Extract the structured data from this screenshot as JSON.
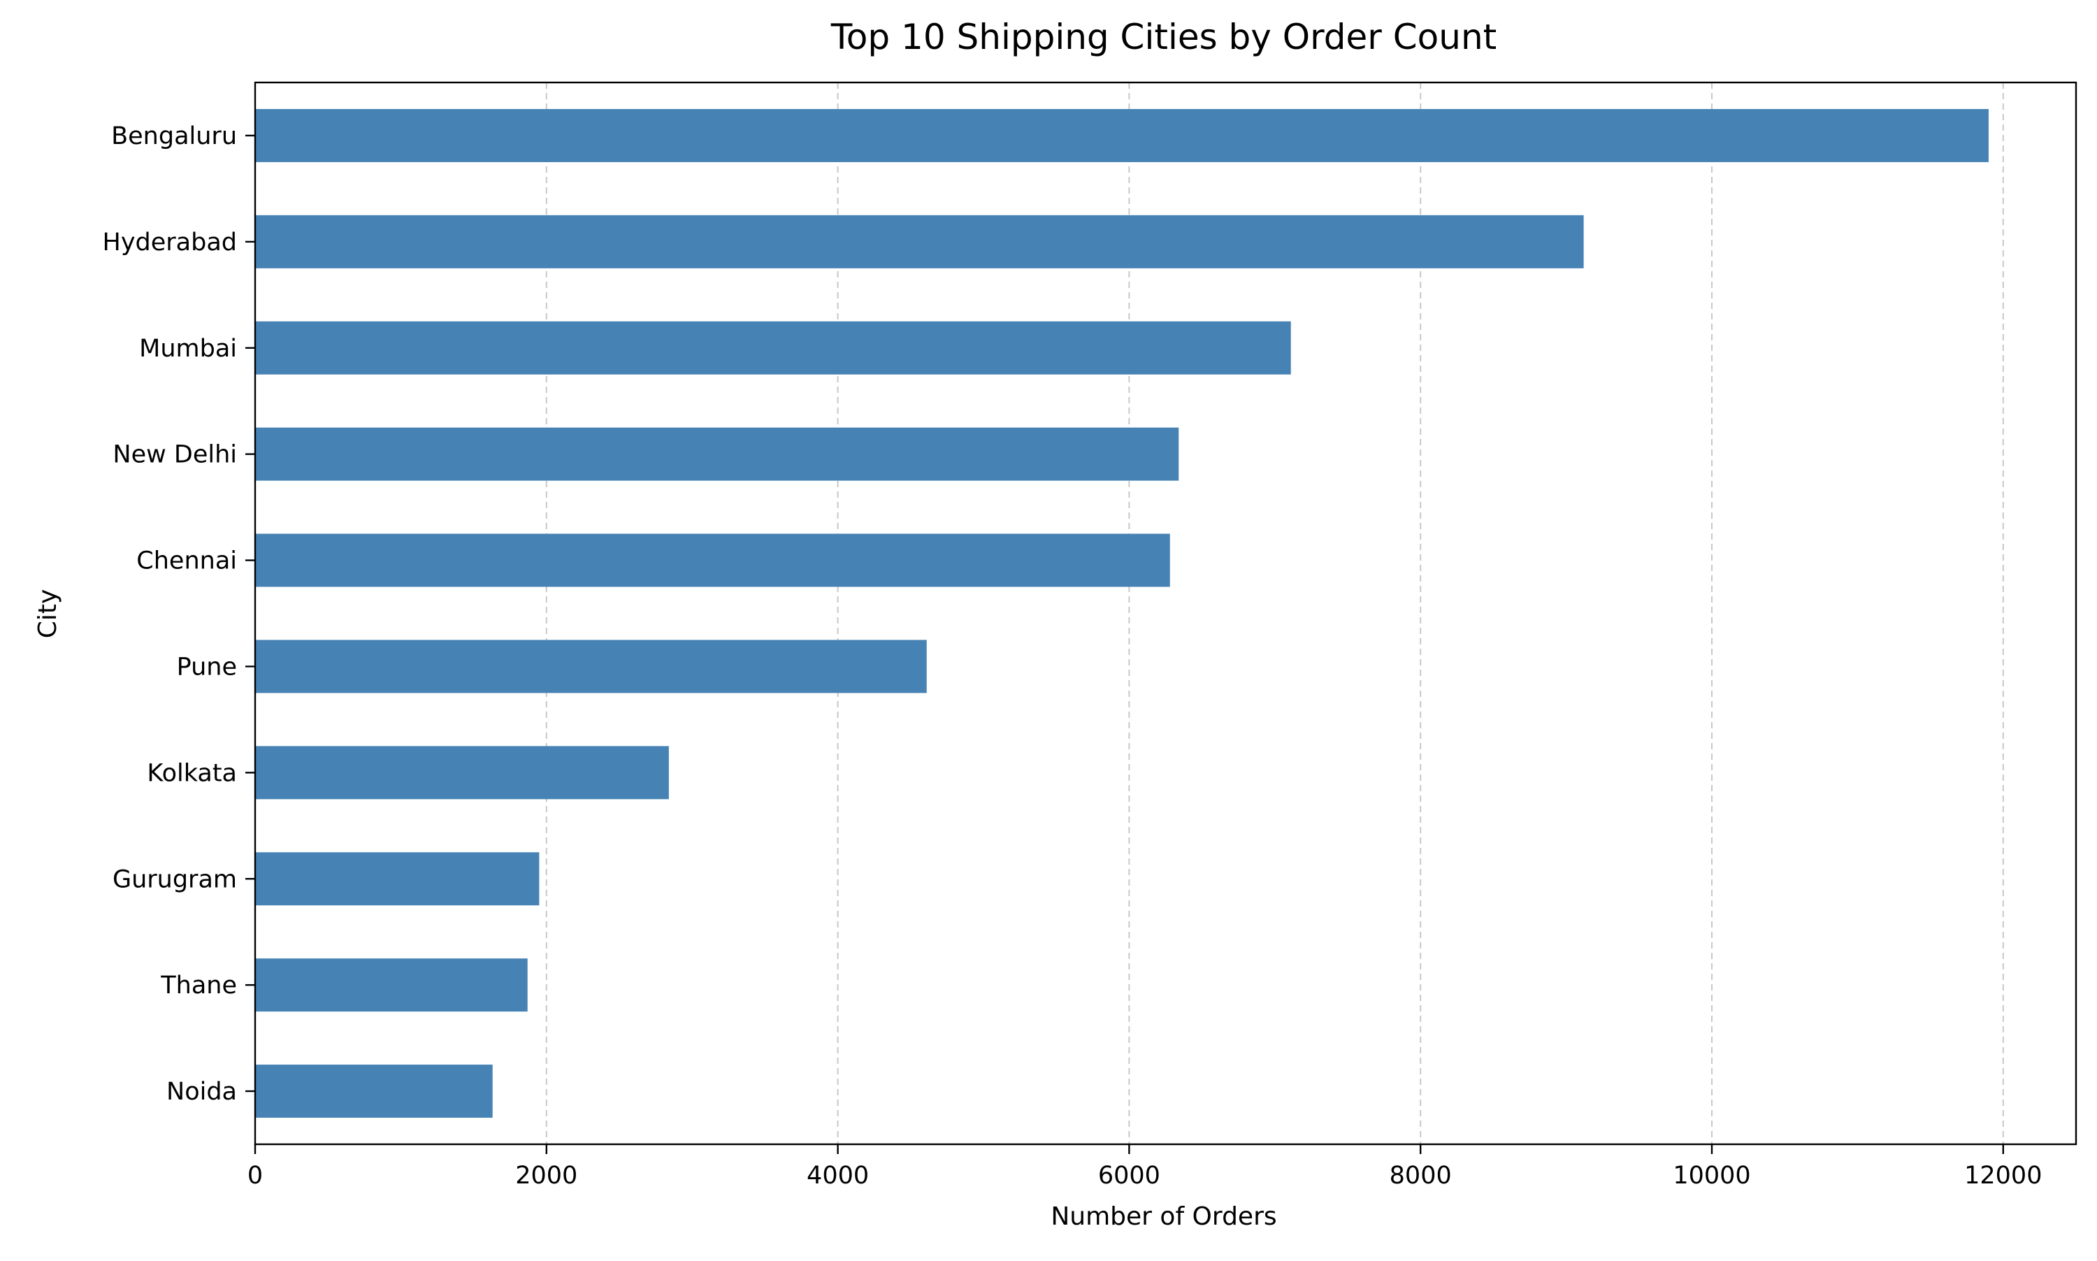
{
  "chart_data": {
    "type": "bar",
    "orientation": "horizontal",
    "title": "Top 10 Shipping Cities by Order Count",
    "xlabel": "Number of Orders",
    "ylabel": "City",
    "categories": [
      "Bengaluru",
      "Hyderabad",
      "Mumbai",
      "New Delhi",
      "Chennai",
      "Pune",
      "Kolkata",
      "Gurugram",
      "Thane",
      "Noida"
    ],
    "values": [
      11900,
      9120,
      7110,
      6340,
      6280,
      4610,
      2840,
      1950,
      1870,
      1630
    ],
    "xlim": [
      0,
      12500
    ],
    "xticks": [
      0,
      2000,
      4000,
      6000,
      8000,
      10000,
      12000
    ],
    "xtick_labels": [
      "0",
      "2000",
      "4000",
      "6000",
      "8000",
      "10000",
      "12000"
    ],
    "grid": "x-dashed",
    "legend": "none",
    "bar_color": "#4682b4",
    "grid_color": "#c8c8c8"
  }
}
